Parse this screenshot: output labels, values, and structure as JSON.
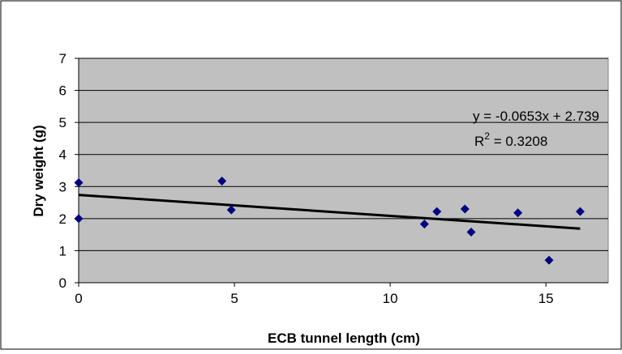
{
  "chart_data": {
    "type": "scatter",
    "xlabel": "ECB tunnel length (cm)",
    "ylabel": "Dry weight (g)",
    "xlim": [
      0,
      17
    ],
    "ylim": [
      0,
      7
    ],
    "x_ticks": [
      0,
      5,
      10,
      15
    ],
    "y_ticks": [
      0,
      1,
      2,
      3,
      4,
      5,
      6,
      7
    ],
    "grid": "horizontal",
    "plot_background": "#c0c0c0",
    "marker_color": "#000080",
    "series": [
      {
        "x": [
          0,
          0,
          4.6,
          4.9,
          11.1,
          11.5,
          12.4,
          12.6,
          14.1,
          15.1,
          16.1
        ],
        "y": [
          3.12,
          2.0,
          3.17,
          2.27,
          1.83,
          2.22,
          2.3,
          1.58,
          2.18,
          0.7,
          2.22
        ]
      }
    ],
    "trendline": {
      "type": "linear",
      "slope": -0.0653,
      "intercept": 2.739,
      "x_range": [
        0,
        16.1
      ],
      "equation_text": "y = -0.0653x + 2.739",
      "r2_prefix": "R",
      "r2_sup": "2",
      "r2_value_text": " = 0.3208"
    }
  }
}
